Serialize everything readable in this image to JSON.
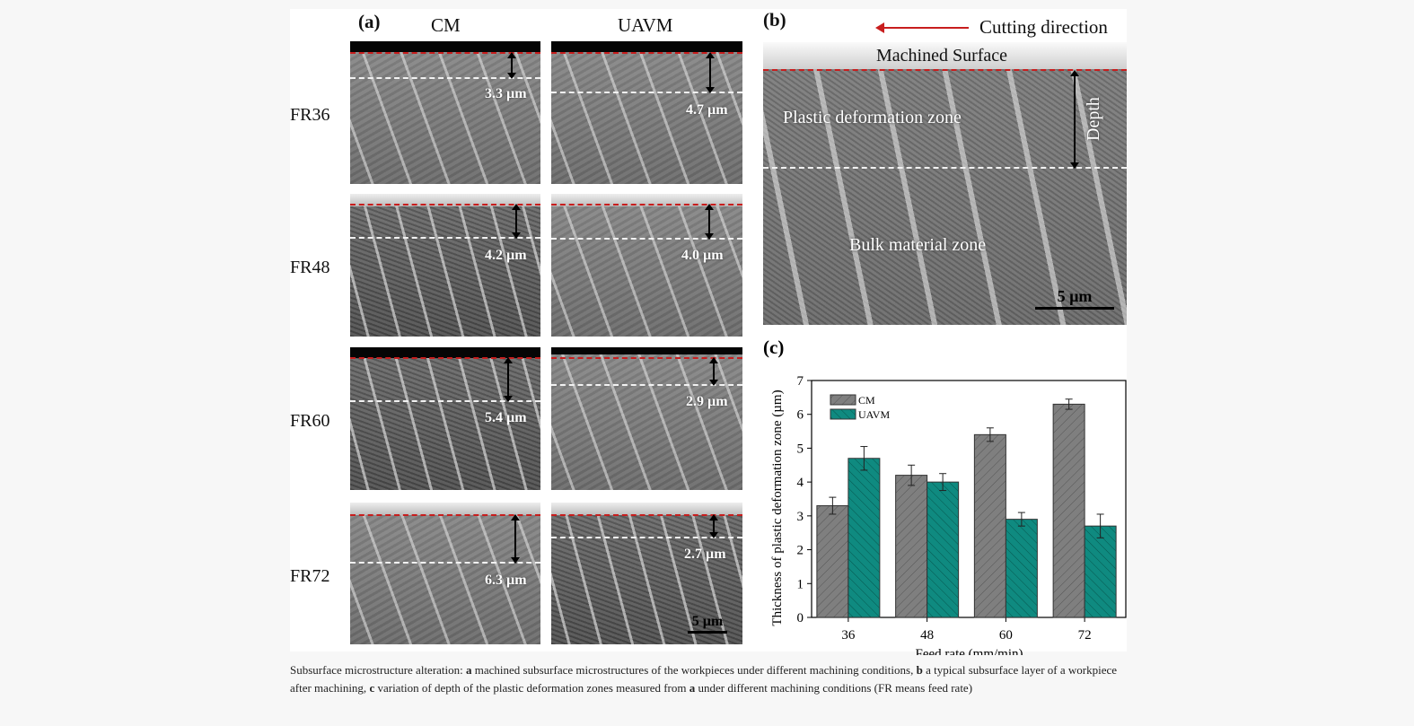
{
  "panel_a": {
    "label": "(a)",
    "col_headers": [
      "CM",
      "UAVM"
    ],
    "rows": [
      {
        "label": "FR36",
        "cm_depth": "3.3 µm",
        "uavm_depth": "4.7 µm"
      },
      {
        "label": "FR48",
        "cm_depth": "4.2 µm",
        "uavm_depth": "4.0 µm"
      },
      {
        "label": "FR60",
        "cm_depth": "5.4 µm",
        "uavm_depth": "2.9 µm"
      },
      {
        "label": "FR72",
        "cm_depth": "6.3 µm",
        "uavm_depth": "2.7 µm"
      }
    ],
    "scale_bar": "5 µm"
  },
  "panel_b": {
    "label": "(b)",
    "cutting_direction": "Cutting direction",
    "machined_surface": "Machined Surface",
    "plastic_zone": "Plastic deformation zone",
    "depth": "Depth",
    "bulk_zone": "Bulk material zone",
    "scale_bar": "5 µm"
  },
  "colors": {
    "cm": "#7f7f7f",
    "uavm": "#0f8a80",
    "red": "#c81e1e"
  },
  "chart_data": {
    "type": "bar",
    "panel_label": "(c)",
    "categories": [
      "36",
      "48",
      "60",
      "72"
    ],
    "series": [
      {
        "name": "CM",
        "values": [
          3.3,
          4.2,
          5.4,
          6.3
        ],
        "errors": [
          0.25,
          0.3,
          0.2,
          0.15
        ]
      },
      {
        "name": "UAVM",
        "values": [
          4.7,
          4.0,
          2.9,
          2.7
        ],
        "errors": [
          0.35,
          0.25,
          0.2,
          0.35
        ]
      }
    ],
    "xlabel": "Feed rate (mm/min)",
    "ylabel": "Thickness of plastic deformation zone (µm)",
    "ylim": [
      0,
      7
    ],
    "yticks": [
      "0",
      "1",
      "2",
      "3",
      "4",
      "5",
      "6",
      "7"
    ],
    "legend": "top-left",
    "grid": false
  },
  "caption": {
    "p1": "Subsurface microstructure alteration: ",
    "a": "a",
    "p2": " machined subsurface microstructures of the workpieces under different machining conditions, ",
    "b": "b",
    "p3": " a typical subsurface layer of a workpiece after machining, ",
    "c": "c",
    "p4": " variation of depth of the plastic deformation zones measured from ",
    "a2": "a",
    "p5": " under different machining conditions (FR means feed rate)"
  }
}
